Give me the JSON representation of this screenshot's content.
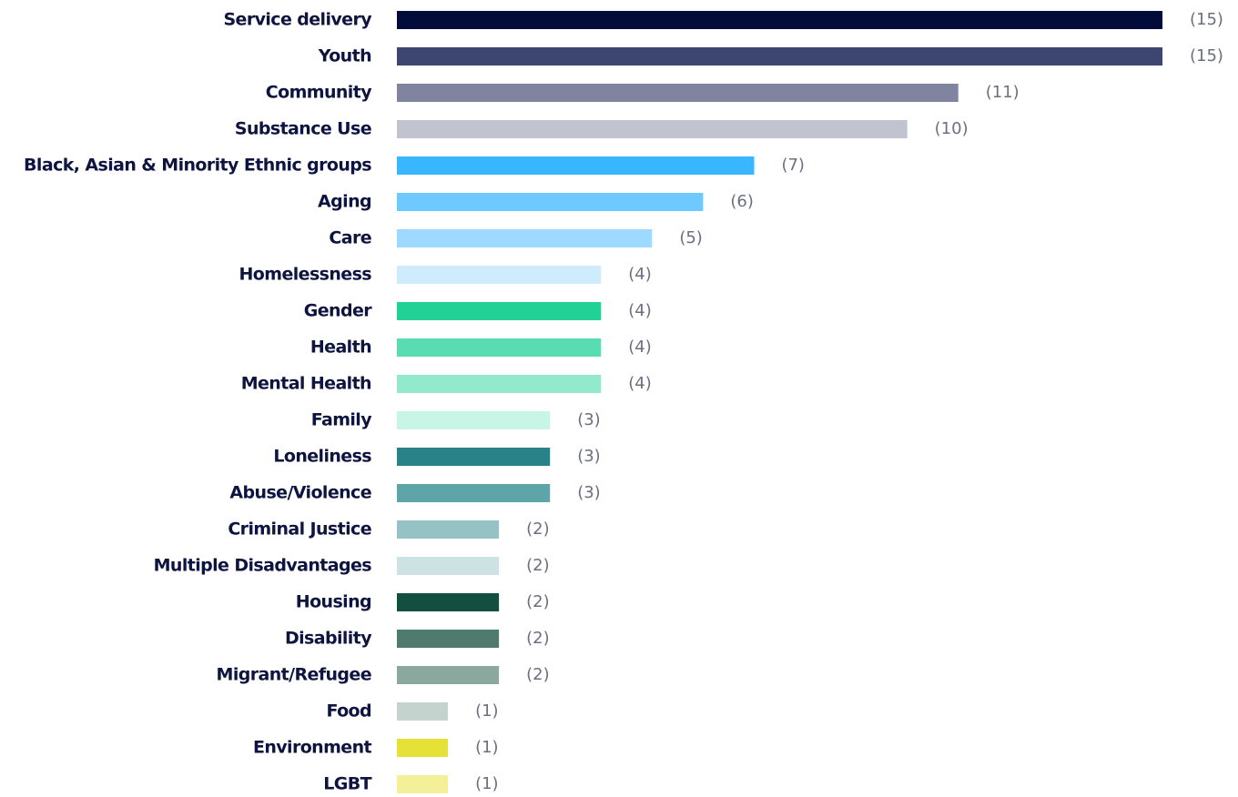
{
  "chart_data": {
    "type": "bar",
    "orientation": "horizontal",
    "categories": [
      "Service delivery",
      "Youth",
      "Community",
      "Substance Use",
      "Black, Asian & Minority Ethnic groups",
      "Aging",
      "Care",
      "Homelessness",
      "Gender",
      "Health",
      "Mental Health",
      "Family",
      "Loneliness",
      "Abuse/Violence",
      "Criminal Justice",
      "Multiple Disadvantages",
      "Housing",
      "Disability",
      "Migrant/Refugee",
      "Food",
      "Environment",
      "LGBT"
    ],
    "values": [
      15,
      15,
      11,
      10,
      7,
      6,
      5,
      4,
      4,
      4,
      4,
      3,
      3,
      3,
      2,
      2,
      2,
      2,
      2,
      1,
      1,
      1
    ],
    "value_labels": [
      "(15)",
      "(15)",
      "(11)",
      "(10)",
      "(7)",
      "(6)",
      "(5)",
      "(4)",
      "(4)",
      "(4)",
      "(4)",
      "(3)",
      "(3)",
      "(3)",
      "(2)",
      "(2)",
      "(2)",
      "(2)",
      "(2)",
      "(1)",
      "(1)",
      "(1)"
    ],
    "colors": [
      "#020b3a",
      "#3d4670",
      "#80849e",
      "#c1c4cf",
      "#38b6ff",
      "#6ec9ff",
      "#9ed9ff",
      "#cfecfd",
      "#21d196",
      "#5adcb2",
      "#93e9cc",
      "#c8f5e5",
      "#2a8289",
      "#5ea5a9",
      "#95c2c5",
      "#cde2e3",
      "#134f40",
      "#4e7b6e",
      "#8aa89e",
      "#c5d3ce",
      "#e5e136",
      "#f3f098"
    ]
  }
}
